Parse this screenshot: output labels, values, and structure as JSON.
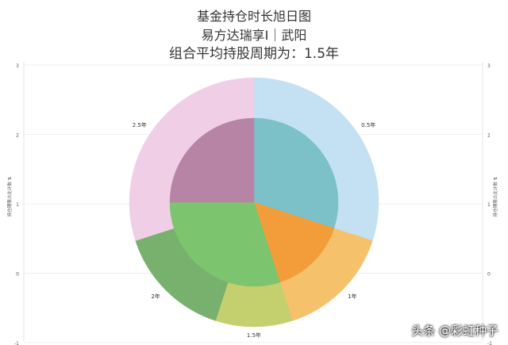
{
  "header": {
    "title": "基金持仓时长旭日图",
    "subtitle_fund": "易方达瑞享I｜武阳",
    "subtitle_avg": "组合平均持股周期为：1.5年"
  },
  "chart_data": {
    "type": "sunburst",
    "axis_left_label": "持仓期限占比计数 ⇅",
    "axis_right_label": "持仓期限占比计数 ⇅",
    "yticks": [
      "3",
      "2",
      "1",
      "0",
      "-1"
    ],
    "grid": true,
    "outer": [
      {
        "label": "0.5年",
        "value": 3,
        "color": "#c3e1f2"
      },
      {
        "label": "1年",
        "value": 1.5,
        "color": "#f6c16b"
      },
      {
        "label": "1.5年",
        "value": 1,
        "color": "#c4cf6e"
      },
      {
        "label": "2年",
        "value": 1.5,
        "color": "#78b06d"
      },
      {
        "label": "2.5年",
        "value": 3,
        "color": "#f0cfe6"
      }
    ],
    "inner": [
      {
        "value": 3,
        "color": "#7cc0c8"
      },
      {
        "value": 1.5,
        "color": "#f29d3a"
      },
      {
        "value": 3,
        "color": "#7dc46f"
      },
      {
        "value": 2.5,
        "color": "#b784a6"
      }
    ]
  },
  "watermark": "头条 @彩虹种子"
}
